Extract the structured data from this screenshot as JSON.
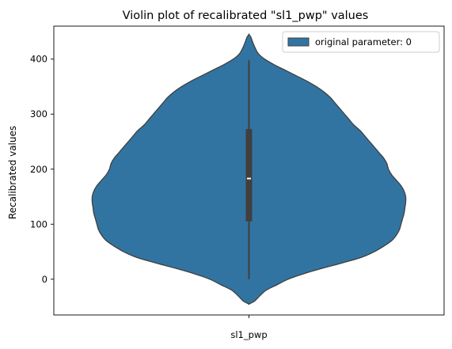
{
  "chart_data": {
    "type": "violin",
    "title": "Violin plot of recalibrated \"sl1_pwp\" values",
    "xlabel": "",
    "ylabel": "Recalibrated values",
    "categories": [
      "sl1_pwp"
    ],
    "ylim": [
      -65,
      460
    ],
    "yticks": [
      0,
      100,
      200,
      300,
      400
    ],
    "grid": false,
    "legend": {
      "position": "top-right",
      "entries": [
        "original parameter: 0"
      ]
    },
    "series": [
      {
        "name": "original parameter: 0",
        "color": "#3274a1",
        "density_profile": [
          [
            -45,
            0.0
          ],
          [
            -40,
            0.035
          ],
          [
            -30,
            0.07
          ],
          [
            -20,
            0.11
          ],
          [
            -10,
            0.18
          ],
          [
            0,
            0.25
          ],
          [
            10,
            0.35
          ],
          [
            20,
            0.47
          ],
          [
            30,
            0.6
          ],
          [
            40,
            0.72
          ],
          [
            50,
            0.8
          ],
          [
            60,
            0.86
          ],
          [
            70,
            0.91
          ],
          [
            80,
            0.94
          ],
          [
            90,
            0.96
          ],
          [
            100,
            0.97
          ],
          [
            110,
            0.98
          ],
          [
            120,
            0.99
          ],
          [
            130,
            0.995
          ],
          [
            140,
            1.0
          ],
          [
            150,
            1.0
          ],
          [
            160,
            0.99
          ],
          [
            170,
            0.97
          ],
          [
            180,
            0.94
          ],
          [
            190,
            0.91
          ],
          [
            200,
            0.89
          ],
          [
            210,
            0.88
          ],
          [
            220,
            0.86
          ],
          [
            230,
            0.83
          ],
          [
            240,
            0.8
          ],
          [
            250,
            0.77
          ],
          [
            260,
            0.74
          ],
          [
            270,
            0.71
          ],
          [
            280,
            0.67
          ],
          [
            290,
            0.64
          ],
          [
            300,
            0.61
          ],
          [
            310,
            0.58
          ],
          [
            320,
            0.55
          ],
          [
            330,
            0.52
          ],
          [
            340,
            0.48
          ],
          [
            350,
            0.43
          ],
          [
            360,
            0.37
          ],
          [
            370,
            0.3
          ],
          [
            380,
            0.23
          ],
          [
            390,
            0.16
          ],
          [
            400,
            0.1
          ],
          [
            410,
            0.06
          ],
          [
            420,
            0.04
          ],
          [
            430,
            0.025
          ],
          [
            440,
            0.012
          ],
          [
            445,
            0.0
          ]
        ],
        "box": {
          "whisker_low": 0,
          "q1": 105,
          "median": 183,
          "q3": 273,
          "whisker_high": 398
        }
      }
    ]
  }
}
